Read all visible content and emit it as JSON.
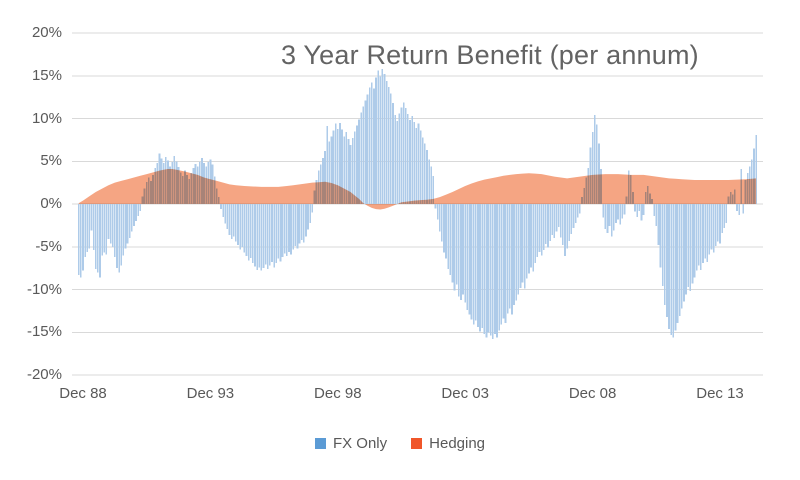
{
  "chart_data": {
    "type": "bar",
    "title": "3 Year Return Benefit (per annum)",
    "x_start": "Oct 1988",
    "x_end": "May 2015",
    "x_frequency": "monthly",
    "x_tick_labels": [
      "Dec 88",
      "Dec 93",
      "Dec 98",
      "Dec 03",
      "Dec 08",
      "Dec 13"
    ],
    "x_tick_month_indices": [
      2,
      62,
      122,
      182,
      242,
      302
    ],
    "y_tick_labels": [
      "20%",
      "15%",
      "10%",
      "5%",
      "0%",
      "-5%",
      "-10%",
      "-15%",
      "-20%"
    ],
    "y_tick_values": [
      20,
      15,
      10,
      5,
      0,
      -5,
      -10,
      -15,
      -20
    ],
    "ylim": [
      -20,
      20
    ],
    "grid": "horizontal",
    "gridline_color": "#D9D9D9",
    "text_color": "#595959",
    "legend_position": "bottom",
    "series": [
      {
        "name": "FX Only",
        "type": "bar",
        "legend_color": "#5B9BD5",
        "fill": "#AECBE9",
        "values": [
          -8.3,
          -8.6,
          -7.8,
          -6.2,
          -5.6,
          -5.2,
          -3.1,
          -5.4,
          -7.6,
          -8.0,
          -8.6,
          -6.0,
          -5.7,
          -5.9,
          -4.1,
          -4.6,
          -5.0,
          -6.2,
          -7.5,
          -8.0,
          -7.2,
          -6.0,
          -5.2,
          -4.6,
          -4.0,
          -3.2,
          -2.6,
          -2.0,
          -1.4,
          -0.8,
          0.9,
          1.8,
          2.6,
          3.1,
          2.7,
          3.4,
          4.2,
          4.8,
          5.9,
          5.3,
          4.8,
          5.5,
          5.1,
          4.4,
          4.9,
          5.6,
          5.0,
          4.3,
          3.7,
          3.3,
          3.9,
          3.4,
          2.9,
          3.6,
          4.2,
          4.7,
          4.4,
          4.9,
          5.4,
          4.8,
          4.4,
          4.9,
          5.2,
          4.6,
          3.2,
          1.8,
          0.8,
          -0.6,
          -1.5,
          -2.3,
          -2.9,
          -3.6,
          -4.1,
          -3.8,
          -4.4,
          -4.8,
          -5.3,
          -5.0,
          -5.7,
          -6.1,
          -6.6,
          -6.3,
          -6.9,
          -7.3,
          -7.7,
          -7.4,
          -7.8,
          -7.5,
          -7.1,
          -7.6,
          -7.2,
          -6.8,
          -7.4,
          -6.9,
          -6.4,
          -6.7,
          -6.2,
          -5.8,
          -6.1,
          -5.6,
          -5.9,
          -5.3,
          -4.9,
          -5.2,
          -4.6,
          -4.2,
          -4.5,
          -3.8,
          -3.0,
          -2.2,
          -1.0,
          1.6,
          2.8,
          3.9,
          4.6,
          5.4,
          6.2,
          9.1,
          7.3,
          7.9,
          8.6,
          9.4,
          8.8,
          9.5,
          8.7,
          7.9,
          8.4,
          7.6,
          6.9,
          7.7,
          8.5,
          9.2,
          9.9,
          10.7,
          11.4,
          12.1,
          12.8,
          13.6,
          14.2,
          13.5,
          14.8,
          15.6,
          14.9,
          15.8,
          15.2,
          14.4,
          13.7,
          12.9,
          11.8,
          10.4,
          9.7,
          10.6,
          11.3,
          11.9,
          11.2,
          10.5,
          9.8,
          10.3,
          9.6,
          8.9,
          9.4,
          8.6,
          7.8,
          7.1,
          6.3,
          5.2,
          4.4,
          3.3,
          -0.5,
          -1.8,
          -3.2,
          -4.4,
          -5.7,
          -6.4,
          -7.6,
          -8.3,
          -9.2,
          -10.1,
          -9.4,
          -10.8,
          -11.2,
          -10.6,
          -11.5,
          -12.4,
          -12.9,
          -13.5,
          -14.1,
          -13.6,
          -14.4,
          -14.9,
          -14.5,
          -15.2,
          -15.6,
          -15.0,
          -15.4,
          -15.8,
          -15.2,
          -15.6,
          -14.8,
          -14.1,
          -13.4,
          -13.9,
          -12.8,
          -12.2,
          -12.9,
          -11.8,
          -11.3,
          -10.6,
          -9.8,
          -9.2,
          -9.9,
          -8.7,
          -8.1,
          -7.4,
          -7.9,
          -6.9,
          -6.2,
          -5.6,
          -6.0,
          -5.4,
          -4.7,
          -5.1,
          -4.3,
          -3.6,
          -4.0,
          -3.2,
          -2.7,
          -3.9,
          -4.8,
          -6.1,
          -5.2,
          -4.3,
          -3.5,
          -2.8,
          -2.2,
          -1.6,
          -1.1,
          0.8,
          1.9,
          3.1,
          4.2,
          6.6,
          8.4,
          10.4,
          9.3,
          7.1,
          4.1,
          -1.6,
          -2.9,
          -3.4,
          -2.6,
          -3.8,
          -3.1,
          -2.2,
          -1.8,
          -2.4,
          -1.7,
          -1.2,
          0.9,
          3.9,
          3.4,
          1.4,
          -0.9,
          -1.5,
          -0.8,
          -1.9,
          -1.3,
          1.4,
          2.1,
          1.2,
          0.6,
          -1.4,
          -2.6,
          -4.8,
          -7.4,
          -9.6,
          -11.8,
          -13.2,
          -14.6,
          -15.3,
          -15.6,
          -14.8,
          -13.9,
          -13.1,
          -12.2,
          -11.4,
          -10.6,
          -9.7,
          -10.2,
          -9.3,
          -8.6,
          -7.8,
          -7.2,
          -7.7,
          -6.9,
          -6.4,
          -6.8,
          -5.9,
          -5.3,
          -5.7,
          -4.9,
          -4.4,
          -4.6,
          -3.4,
          -2.8,
          -2.2,
          0.9,
          1.4,
          1.1,
          1.7,
          -0.8,
          -1.3,
          4.1,
          -1.1,
          2.8,
          3.6,
          4.4,
          5.2,
          6.5,
          8.1
        ]
      },
      {
        "name": "Hedging",
        "type": "area",
        "legend_color": "#F0562A",
        "fill": "#F5A583",
        "keypoints": [
          [
            0,
            0.1
          ],
          [
            2,
            0.4
          ],
          [
            5,
            0.9
          ],
          [
            8,
            1.4
          ],
          [
            11,
            1.8
          ],
          [
            14,
            2.2
          ],
          [
            17,
            2.5
          ],
          [
            20,
            2.7
          ],
          [
            23,
            2.9
          ],
          [
            26,
            3.1
          ],
          [
            29,
            3.3
          ],
          [
            32,
            3.5
          ],
          [
            35,
            3.7
          ],
          [
            38,
            3.9
          ],
          [
            40,
            4.0
          ],
          [
            42,
            4.1
          ],
          [
            44,
            4.1
          ],
          [
            46,
            4.0
          ],
          [
            48,
            3.9
          ],
          [
            50,
            3.8
          ],
          [
            53,
            3.6
          ],
          [
            56,
            3.4
          ],
          [
            59,
            3.1
          ],
          [
            62,
            2.9
          ],
          [
            65,
            2.7
          ],
          [
            68,
            2.5
          ],
          [
            71,
            2.3
          ],
          [
            74,
            2.2
          ],
          [
            78,
            2.1
          ],
          [
            82,
            2.05
          ],
          [
            86,
            2.0
          ],
          [
            90,
            2.0
          ],
          [
            94,
            2.0
          ],
          [
            98,
            2.1
          ],
          [
            101,
            2.2
          ],
          [
            104,
            2.3
          ],
          [
            107,
            2.4
          ],
          [
            110,
            2.5
          ],
          [
            113,
            2.55
          ],
          [
            116,
            2.6
          ],
          [
            119,
            2.45
          ],
          [
            122,
            2.2
          ],
          [
            125,
            1.8
          ],
          [
            128,
            1.4
          ],
          [
            130,
            1.0
          ],
          [
            132,
            0.6
          ],
          [
            134,
            0.1
          ],
          [
            136,
            -0.2
          ],
          [
            138,
            -0.45
          ],
          [
            140,
            -0.6
          ],
          [
            142,
            -0.65
          ],
          [
            144,
            -0.55
          ],
          [
            146,
            -0.4
          ],
          [
            148,
            -0.2
          ],
          [
            150,
            0.0
          ],
          [
            152,
            0.2
          ],
          [
            155,
            0.3
          ],
          [
            158,
            0.4
          ],
          [
            161,
            0.45
          ],
          [
            164,
            0.5
          ],
          [
            167,
            0.6
          ],
          [
            170,
            0.8
          ],
          [
            173,
            1.1
          ],
          [
            176,
            1.4
          ],
          [
            179,
            1.75
          ],
          [
            182,
            2.1
          ],
          [
            185,
            2.4
          ],
          [
            188,
            2.65
          ],
          [
            191,
            2.85
          ],
          [
            194,
            3.0
          ],
          [
            197,
            3.15
          ],
          [
            200,
            3.3
          ],
          [
            203,
            3.4
          ],
          [
            206,
            3.5
          ],
          [
            209,
            3.55
          ],
          [
            212,
            3.6
          ],
          [
            215,
            3.55
          ],
          [
            218,
            3.5
          ],
          [
            221,
            3.35
          ],
          [
            224,
            3.2
          ],
          [
            227,
            3.1
          ],
          [
            230,
            3.0
          ],
          [
            233,
            3.1
          ],
          [
            236,
            3.2
          ],
          [
            239,
            3.3
          ],
          [
            242,
            3.4
          ],
          [
            245,
            3.45
          ],
          [
            248,
            3.5
          ],
          [
            251,
            3.5
          ],
          [
            254,
            3.5
          ],
          [
            257,
            3.45
          ],
          [
            260,
            3.4
          ],
          [
            263,
            3.4
          ],
          [
            266,
            3.4
          ],
          [
            269,
            3.3
          ],
          [
            272,
            3.2
          ],
          [
            275,
            3.1
          ],
          [
            278,
            3.0
          ],
          [
            281,
            2.95
          ],
          [
            284,
            2.9
          ],
          [
            287,
            2.85
          ],
          [
            290,
            2.8
          ],
          [
            294,
            2.8
          ],
          [
            298,
            2.8
          ],
          [
            302,
            2.8
          ],
          [
            306,
            2.8
          ],
          [
            310,
            2.85
          ],
          [
            314,
            2.9
          ],
          [
            317,
            2.95
          ],
          [
            319,
            3.0
          ]
        ]
      }
    ]
  }
}
